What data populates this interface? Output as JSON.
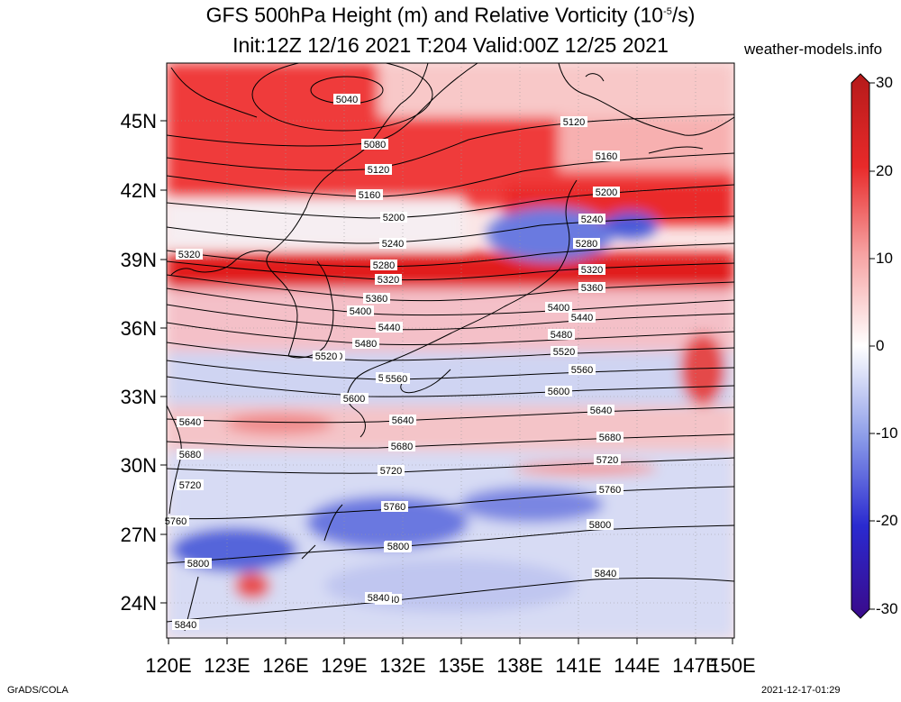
{
  "title_line1": "GFS 500hPa Height (m) and Relative Vorticity (10",
  "title_sup": "-5",
  "title_end": "/s)",
  "title_line2": "Init:12Z 12/16 2021 T:204 Valid:00Z 12/25 2021",
  "site": "weather-models.info",
  "footer_left": "GrADS/COLA",
  "footer_right": "2021-12-17-01:29",
  "lat_labels": [
    "45N",
    "42N",
    "39N",
    "36N",
    "33N",
    "30N",
    "27N",
    "24N"
  ],
  "lon_labels": [
    "120E",
    "123E",
    "126E",
    "129E",
    "132E",
    "135E",
    "138E",
    "141E",
    "144E",
    "147E",
    "150E"
  ],
  "colorbar": {
    "ticks": [
      "30",
      "20",
      "10",
      "0",
      "-10",
      "-20",
      "-30"
    ],
    "colors": [
      "#b51a1a",
      "#e82a2a",
      "#f38a8a",
      "#ffffff",
      "#8a9ae8",
      "#2a2ad0",
      "#3a0a8a"
    ]
  },
  "contours": [
    {
      "label": "5040"
    },
    {
      "label": "5080"
    },
    {
      "label": "5120"
    },
    {
      "label": "5160"
    },
    {
      "label": "5200"
    },
    {
      "label": "5240"
    },
    {
      "label": "5280"
    },
    {
      "label": "5320"
    },
    {
      "label": "5360"
    },
    {
      "label": "5400"
    },
    {
      "label": "5440"
    },
    {
      "label": "5480"
    },
    {
      "label": "5520"
    },
    {
      "label": "5560"
    },
    {
      "label": "5600"
    },
    {
      "label": "5640"
    },
    {
      "label": "5680"
    },
    {
      "label": "5720"
    },
    {
      "label": "5760"
    },
    {
      "label": "5800"
    },
    {
      "label": "5840"
    }
  ]
}
